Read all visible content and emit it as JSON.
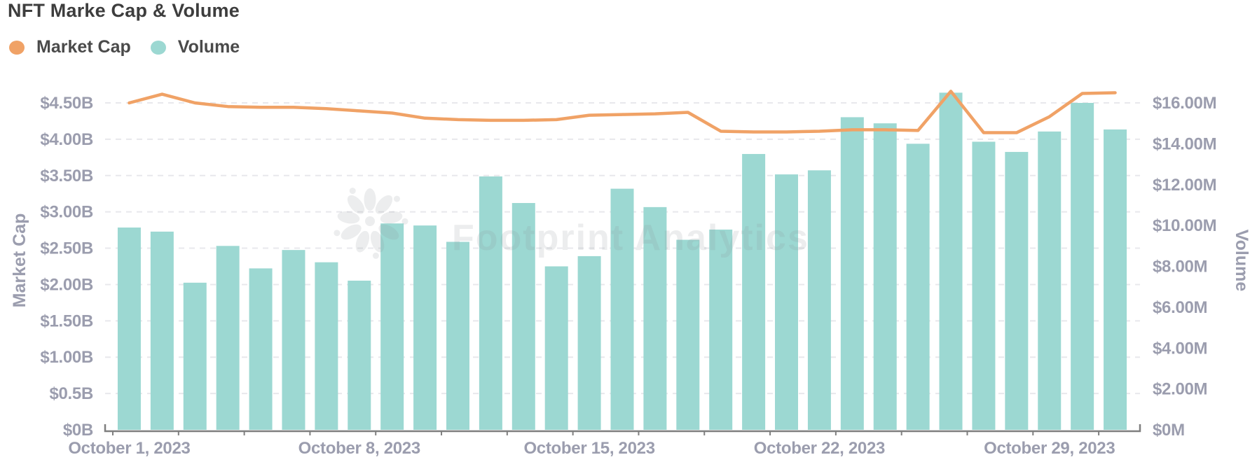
{
  "title": "NFT Marke Cap & Volume",
  "watermark": "Footprint Analytics",
  "colors": {
    "market_cap": "#F0A266",
    "volume": "#9CD8D2",
    "axis_text": "#9B9DAE",
    "title_text": "#3D3D3D",
    "legend_text": "#4A4A4A",
    "gridline": "#E8E8EC",
    "axis_line": "#7F7F7F",
    "watermark_gray": "rgba(145,148,155,0.17)"
  },
  "chart_data": {
    "type": "combo-bar-line",
    "grid": "horizontal dashed",
    "legend_position": "top-left",
    "categories": [
      "October 1, 2023",
      "October 2, 2023",
      "October 3, 2023",
      "October 4, 2023",
      "October 5, 2023",
      "October 6, 2023",
      "October 7, 2023",
      "October 8, 2023",
      "October 9, 2023",
      "October 10, 2023",
      "October 11, 2023",
      "October 12, 2023",
      "October 13, 2023",
      "October 14, 2023",
      "October 15, 2023",
      "October 16, 2023",
      "October 17, 2023",
      "October 18, 2023",
      "October 19, 2023",
      "October 20, 2023",
      "October 21, 2023",
      "October 22, 2023",
      "October 23, 2023",
      "October 24, 2023",
      "October 25, 2023",
      "October 26, 2023",
      "October 27, 2023",
      "October 28, 2023",
      "October 29, 2023",
      "October 30, 2023",
      "October 31, 2023"
    ],
    "series": [
      {
        "name": "Market Cap",
        "type": "line",
        "axis": "left",
        "unit": "USD billions",
        "color": "#F0A266",
        "values": [
          4.5,
          4.62,
          4.5,
          4.45,
          4.44,
          4.44,
          4.42,
          4.39,
          4.36,
          4.29,
          4.27,
          4.26,
          4.26,
          4.27,
          4.33,
          4.34,
          4.35,
          4.37,
          4.11,
          4.1,
          4.1,
          4.11,
          4.13,
          4.13,
          4.12,
          4.66,
          4.09,
          4.09,
          4.31,
          4.63,
          4.64
        ]
      },
      {
        "name": "Volume",
        "type": "bar",
        "axis": "right",
        "unit": "USD millions",
        "color": "#9CD8D2",
        "values": [
          9.9,
          9.7,
          7.2,
          9.0,
          7.9,
          8.8,
          8.2,
          7.3,
          10.1,
          10.0,
          9.2,
          12.4,
          11.1,
          8.0,
          8.5,
          11.8,
          10.9,
          9.3,
          9.8,
          13.5,
          12.5,
          12.7,
          15.3,
          15.0,
          14.0,
          16.5,
          14.1,
          13.6,
          14.6,
          16.0,
          14.7
        ]
      }
    ],
    "left_axis": {
      "title": "Market Cap",
      "min": 0,
      "max": 4.5,
      "ticks": [
        {
          "label": "$0B",
          "value": 0
        },
        {
          "label": "$0.5B",
          "value": 0.5
        },
        {
          "label": "$1.00B",
          "value": 1
        },
        {
          "label": "$1.50B",
          "value": 1.5
        },
        {
          "label": "$2.00B",
          "value": 2
        },
        {
          "label": "$2.50B",
          "value": 2.5
        },
        {
          "label": "$3.00B",
          "value": 3
        },
        {
          "label": "$3.50B",
          "value": 3.5
        },
        {
          "label": "$4.00B",
          "value": 4
        },
        {
          "label": "$4.50B",
          "value": 4.5
        }
      ]
    },
    "right_axis": {
      "title": "Volume",
      "min": 0,
      "max": 16,
      "ticks": [
        {
          "label": "$0M",
          "value": 0
        },
        {
          "label": "$2.00M",
          "value": 2
        },
        {
          "label": "$4.00M",
          "value": 4
        },
        {
          "label": "$6.00M",
          "value": 6
        },
        {
          "label": "$8.00M",
          "value": 8
        },
        {
          "label": "$10.00M",
          "value": 10
        },
        {
          "label": "$12.00M",
          "value": 12
        },
        {
          "label": "$14.00M",
          "value": 14
        },
        {
          "label": "$16.00M",
          "value": 16
        }
      ]
    },
    "x_axis": {
      "tick_labels": [
        {
          "index": 0,
          "label": "October 1, 2023"
        },
        {
          "index": 7,
          "label": "October 8, 2023"
        },
        {
          "index": 14,
          "label": "October 15, 2023"
        },
        {
          "index": 21,
          "label": "October 22, 2023"
        },
        {
          "index": 28,
          "label": "October 29, 2023"
        }
      ]
    }
  }
}
